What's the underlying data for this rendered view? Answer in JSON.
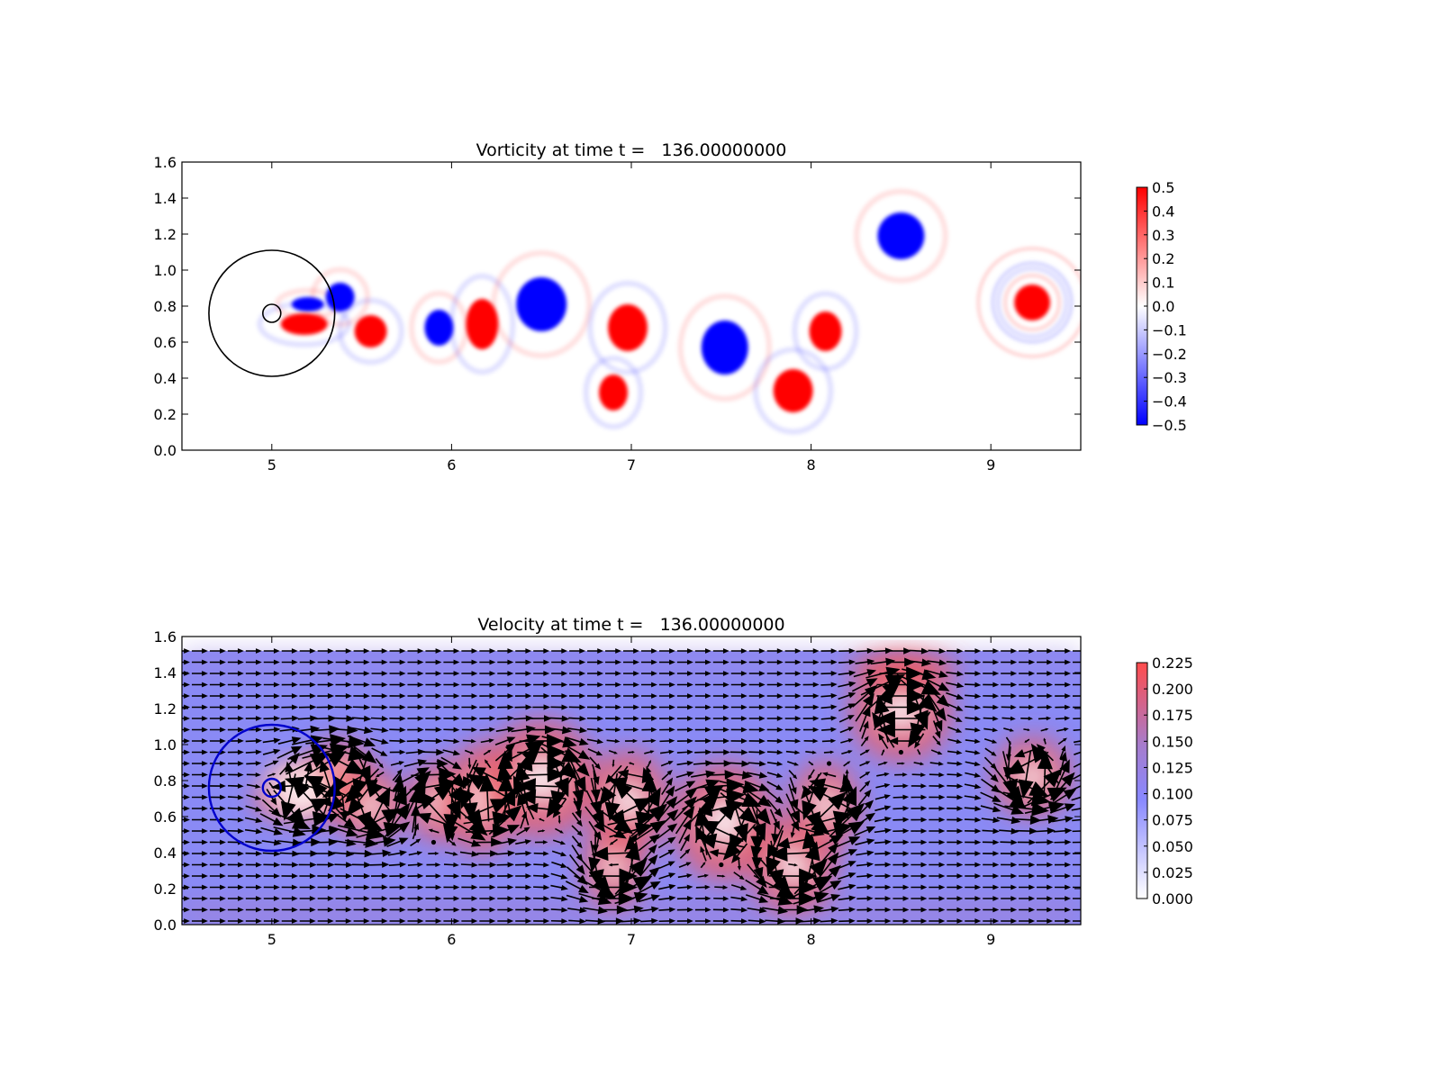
{
  "chart_data": [
    {
      "type": "heatmap",
      "title": "Vorticity at time t =   136.00000000",
      "xlim": [
        4.5,
        9.5
      ],
      "ylim": [
        0.0,
        1.6
      ],
      "xticks": [
        5,
        6,
        7,
        8,
        9
      ],
      "yticks": [
        0.0,
        0.2,
        0.4,
        0.6,
        0.8,
        1.0,
        1.2,
        1.4,
        1.6
      ],
      "colormap": "bwr",
      "colorbar": {
        "min": -0.5,
        "max": 0.5,
        "ticks": [
          "0.5",
          "0.4",
          "0.3",
          "0.2",
          "0.1",
          "0.0",
          "−0.1",
          "−0.2",
          "−0.3",
          "−0.4",
          "−0.5"
        ]
      },
      "overlay_circles": [
        {
          "cx": 5.0,
          "cy": 0.76,
          "r": 0.35,
          "color": "#000000"
        },
        {
          "cx": 5.0,
          "cy": 0.76,
          "r": 0.05,
          "color": "#000000"
        }
      ],
      "vortices": [
        {
          "x": 5.38,
          "y": 0.85,
          "rx": 0.08,
          "ry": 0.08,
          "sign": -1
        },
        {
          "x": 5.2,
          "y": 0.81,
          "rx": 0.09,
          "ry": 0.04,
          "sign": -1
        },
        {
          "x": 5.18,
          "y": 0.7,
          "rx": 0.13,
          "ry": 0.06,
          "sign": 1
        },
        {
          "x": 5.55,
          "y": 0.66,
          "rx": 0.09,
          "ry": 0.09,
          "sign": 1
        },
        {
          "x": 5.93,
          "y": 0.68,
          "rx": 0.08,
          "ry": 0.1,
          "sign": -1
        },
        {
          "x": 6.17,
          "y": 0.7,
          "rx": 0.09,
          "ry": 0.14,
          "sign": 1
        },
        {
          "x": 6.5,
          "y": 0.81,
          "rx": 0.14,
          "ry": 0.15,
          "sign": -1
        },
        {
          "x": 6.98,
          "y": 0.68,
          "rx": 0.11,
          "ry": 0.13,
          "sign": 1
        },
        {
          "x": 6.9,
          "y": 0.32,
          "rx": 0.08,
          "ry": 0.1,
          "sign": 1
        },
        {
          "x": 7.52,
          "y": 0.57,
          "rx": 0.13,
          "ry": 0.15,
          "sign": -1
        },
        {
          "x": 7.9,
          "y": 0.33,
          "rx": 0.11,
          "ry": 0.12,
          "sign": 1
        },
        {
          "x": 8.08,
          "y": 0.66,
          "rx": 0.09,
          "ry": 0.11,
          "sign": 1
        },
        {
          "x": 8.5,
          "y": 1.19,
          "rx": 0.13,
          "ry": 0.13,
          "sign": -1
        },
        {
          "x": 9.23,
          "y": 0.82,
          "rx": 0.1,
          "ry": 0.1,
          "sign": 1
        }
      ]
    },
    {
      "type": "heatmap",
      "title": "Velocity at time t =   136.00000000",
      "xlim": [
        4.5,
        9.5
      ],
      "ylim": [
        0.0,
        1.6
      ],
      "xticks": [
        5,
        6,
        7,
        8,
        9
      ],
      "yticks": [
        0.0,
        0.2,
        0.4,
        0.6,
        0.8,
        1.0,
        1.2,
        1.4,
        1.6
      ],
      "colormap": "white-blue-red",
      "colorbar": {
        "min": 0.0,
        "max": 0.225,
        "ticks": [
          "0.225",
          "0.200",
          "0.175",
          "0.150",
          "0.125",
          "0.100",
          "0.075",
          "0.050",
          "0.025",
          "0.000"
        ]
      },
      "data_ymax": 1.52,
      "overlay_circles": [
        {
          "cx": 5.0,
          "cy": 0.76,
          "r": 0.35,
          "color": "#0000cc"
        },
        {
          "cx": 5.0,
          "cy": 0.76,
          "r": 0.05,
          "color": "#0000cc"
        }
      ],
      "quiver": "uniform flow plus vortex field, arrows on a 0.1 x 0.0625 grid"
    }
  ]
}
